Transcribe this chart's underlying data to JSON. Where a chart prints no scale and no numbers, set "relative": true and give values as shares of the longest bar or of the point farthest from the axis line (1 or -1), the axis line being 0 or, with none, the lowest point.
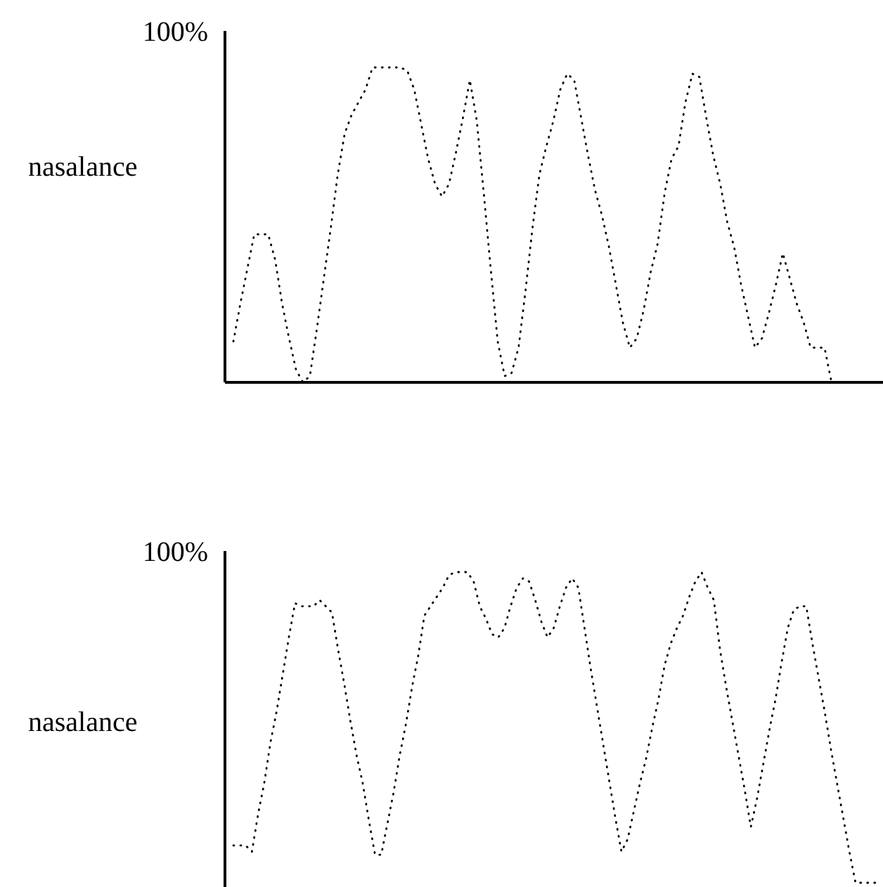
{
  "chart_data": [
    {
      "type": "line",
      "relative": true,
      "ylabel": "nasalance",
      "annotations": [
        "100%"
      ],
      "line_style": "dotted",
      "categories": [
        null,
        null,
        null,
        null,
        null,
        null,
        null,
        null,
        null,
        null,
        null,
        null,
        null,
        null,
        null,
        null,
        null,
        null,
        null,
        null,
        null,
        null,
        null,
        null,
        null,
        null,
        null,
        null,
        null,
        null,
        null,
        null,
        null,
        null,
        null,
        null,
        null,
        null,
        null,
        null,
        null,
        null,
        null,
        null,
        null,
        null,
        null,
        null,
        null,
        null,
        null,
        null,
        null,
        null,
        null,
        null,
        null,
        null,
        null,
        null,
        null,
        null,
        null,
        null,
        null,
        null,
        null,
        null,
        null,
        null,
        null,
        null,
        null,
        null,
        null,
        null,
        null,
        null,
        null,
        null,
        null,
        null,
        null,
        null,
        null,
        null,
        null,
        null,
        null,
        null,
        null,
        null,
        null,
        null
      ],
      "series": [
        {
          "color": "#000000",
          "values": [
            0.13,
            0.25,
            0.36,
            0.47,
            0.47,
            0.47,
            0.39,
            0.25,
            0.14,
            0.04,
            0.0,
            0.02,
            0.17,
            0.33,
            0.49,
            0.66,
            0.79,
            0.85,
            0.89,
            0.93,
            1,
            1,
            1,
            1,
            1,
            0.99,
            0.93,
            0.82,
            0.71,
            0.63,
            0.59,
            0.63,
            0.73,
            0.84,
            0.96,
            0.83,
            0.6,
            0.36,
            0.13,
            0.02,
            0.03,
            0.11,
            0.29,
            0.49,
            0.66,
            0.75,
            0.83,
            0.93,
            0.98,
            0.96,
            0.84,
            0.72,
            0.61,
            0.53,
            0.43,
            0.31,
            0.19,
            0.11,
            0.14,
            0.23,
            0.35,
            0.44,
            0.6,
            0.71,
            0.75,
            0.89,
            0.98,
            0.97,
            0.84,
            0.72,
            0.63,
            0.51,
            0.43,
            0.31,
            0.21,
            0.11,
            0.14,
            0.22,
            0.31,
            0.41,
            0.33,
            0.25,
            0.19,
            0.11,
            0.11,
            0.11,
            0,
            0,
            0,
            0,
            0,
            0,
            0,
            0
          ]
        }
      ]
    },
    {
      "type": "line",
      "relative": true,
      "ylabel": "nasalance",
      "annotations": [
        "100%"
      ],
      "line_style": "dotted",
      "categories": [
        null,
        null,
        null,
        null,
        null,
        null,
        null,
        null,
        null,
        null,
        null,
        null,
        null,
        null,
        null,
        null,
        null,
        null,
        null,
        null,
        null,
        null,
        null,
        null,
        null,
        null,
        null,
        null,
        null,
        null,
        null,
        null,
        null,
        null,
        null,
        null,
        null,
        null,
        null,
        null,
        null,
        null,
        null,
        null,
        null,
        null,
        null,
        null,
        null,
        null,
        null,
        null,
        null,
        null,
        null,
        null,
        null,
        null,
        null,
        null,
        null,
        null,
        null,
        null,
        null,
        null,
        null,
        null,
        null,
        null,
        null,
        null,
        null,
        null,
        null,
        null,
        null,
        null,
        null,
        null,
        null,
        null,
        null,
        null,
        null,
        null,
        null,
        null,
        null,
        null,
        null,
        null,
        null,
        null,
        null,
        null,
        null,
        null,
        null,
        null,
        null,
        null,
        null,
        null,
        null,
        null
      ],
      "series": [
        {
          "color": "#000000",
          "values": [
            0.12,
            0.12,
            0.12,
            0.1,
            0.22,
            0.32,
            0.45,
            0.55,
            0.67,
            0.79,
            0.9,
            0.89,
            0.89,
            0.89,
            0.91,
            0.89,
            0.87,
            0.75,
            0.64,
            0.52,
            0.41,
            0.32,
            0.2,
            0.09,
            0.09,
            0.19,
            0.29,
            0.41,
            0.51,
            0.63,
            0.73,
            0.86,
            0.89,
            0.92,
            0.95,
            0.99,
            1,
            1,
            1,
            0.97,
            0.89,
            0.85,
            0.8,
            0.79,
            0.82,
            0.89,
            0.95,
            0.98,
            0.97,
            0.91,
            0.84,
            0.79,
            0.82,
            0.89,
            0.95,
            0.98,
            0.95,
            0.82,
            0.69,
            0.57,
            0.45,
            0.33,
            0.21,
            0.1,
            0.14,
            0.23,
            0.32,
            0.4,
            0.5,
            0.59,
            0.7,
            0.77,
            0.82,
            0.86,
            0.92,
            0.97,
            1,
            0.95,
            0.91,
            0.75,
            0.63,
            0.52,
            0.41,
            0.3,
            0.18,
            0.27,
            0.38,
            0.49,
            0.59,
            0.71,
            0.82,
            0.88,
            0.89,
            0.89,
            0.77,
            0.66,
            0.55,
            0.43,
            0.32,
            0.21,
            0.1,
            0,
            0,
            0,
            0,
            0
          ]
        }
      ]
    }
  ]
}
